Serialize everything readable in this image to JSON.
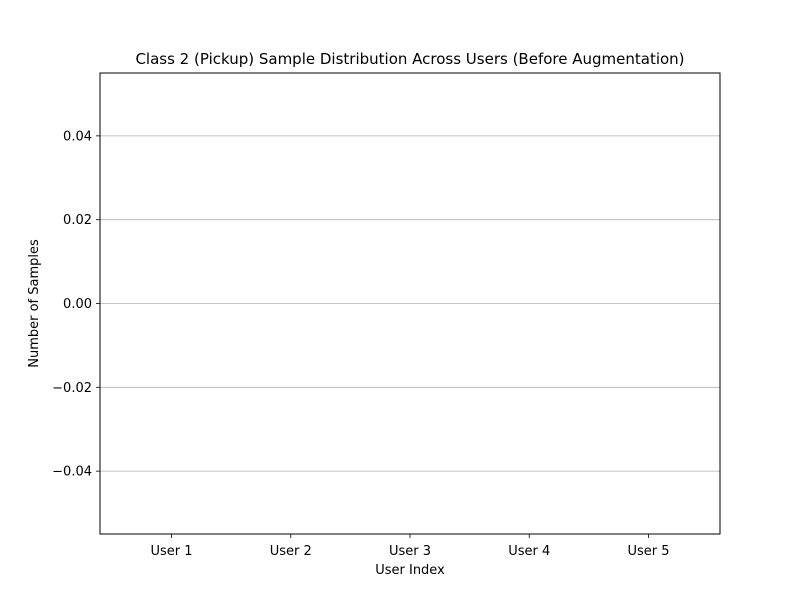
{
  "chart_data": {
    "type": "bar",
    "title": "Class 2 (Pickup) Sample Distribution Across Users (Before Augmentation)",
    "xlabel": "User Index",
    "ylabel": "Number of Samples",
    "categories": [
      "User 1",
      "User 2",
      "User 3",
      "User 4",
      "User 5"
    ],
    "values": [
      0,
      0,
      0,
      0,
      0
    ],
    "ylim": [
      -0.055,
      0.055
    ],
    "yticks": [
      -0.04,
      -0.02,
      0.0,
      0.02,
      0.04
    ],
    "ytick_labels": [
      "−0.04",
      "−0.02",
      "0.00",
      "0.02",
      "0.04"
    ],
    "grid": "y",
    "legend": "none"
  }
}
